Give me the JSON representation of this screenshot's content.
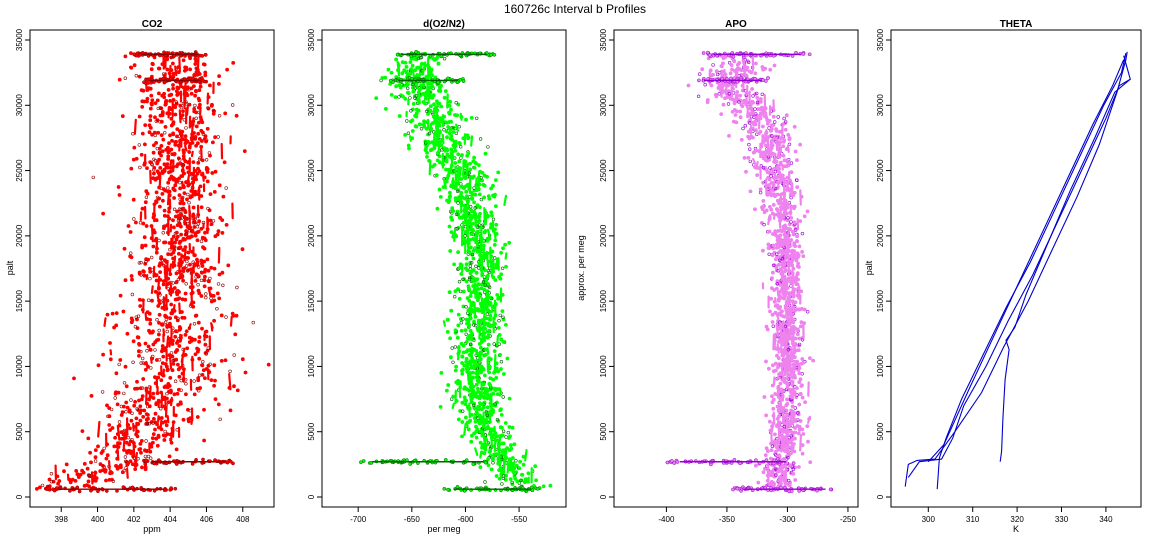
{
  "page_title": "160726c   Interval b Profiles",
  "chart_data": [
    {
      "type": "scatter",
      "title": "CO2",
      "xlabel": "ppm",
      "ylabel": "palt",
      "xlim": [
        396.5,
        409.5
      ],
      "ylim": [
        0,
        35000
      ],
      "xticks": [
        398,
        400,
        402,
        404,
        406,
        408
      ],
      "yticks": [
        0,
        5000,
        10000,
        15000,
        20000,
        25000,
        30000,
        35000
      ],
      "color": "#ff0000",
      "edge_color": "#8b0000",
      "profile": [
        [
          397.2,
          600
        ],
        [
          399.5,
          1400
        ],
        [
          401.5,
          2700
        ],
        [
          403.0,
          5800
        ],
        [
          404.0,
          10000
        ],
        [
          404.3,
          15000
        ],
        [
          404.5,
          20000
        ],
        [
          404.4,
          25000
        ],
        [
          404.6,
          30000
        ],
        [
          404.3,
          32000
        ],
        [
          404.1,
          34000
        ]
      ],
      "spread": [
        [
          0,
          4.0
        ],
        [
          2000,
          2.0
        ],
        [
          5000,
          3.0
        ],
        [
          10000,
          3.5
        ],
        [
          15000,
          3.0
        ],
        [
          20000,
          2.3
        ],
        [
          25000,
          2.3
        ],
        [
          30000,
          2.5
        ],
        [
          34000,
          2.5
        ]
      ],
      "horizontal_bands": [
        {
          "y": 600,
          "x_from": 397.0,
          "x_to": 404.5
        },
        {
          "y": 2700,
          "x_from": 402.5,
          "x_to": 407.5
        },
        {
          "y": 31900,
          "x_from": 402.5,
          "x_to": 406.0
        },
        {
          "y": 33900,
          "x_from": 402.0,
          "x_to": 406.0
        }
      ]
    },
    {
      "type": "scatter",
      "title": "d(O2/N2)",
      "xlabel": "per meg",
      "ylabel": "",
      "xlim": [
        -730,
        -510
      ],
      "ylim": [
        0,
        35000
      ],
      "xticks": [
        -700,
        -650,
        -600,
        -550
      ],
      "yticks": [
        0,
        5000,
        10000,
        15000,
        20000,
        25000,
        30000,
        35000
      ],
      "color": "#00ff00",
      "edge_color": "#006400",
      "profile": [
        [
          -545,
          600
        ],
        [
          -565,
          2700
        ],
        [
          -585,
          5800
        ],
        [
          -590,
          10000
        ],
        [
          -585,
          15000
        ],
        [
          -590,
          20000
        ],
        [
          -600,
          24000
        ],
        [
          -620,
          27000
        ],
        [
          -628,
          29000
        ],
        [
          -640,
          30500
        ],
        [
          -650,
          31900
        ],
        [
          -640,
          33900
        ]
      ],
      "spread": [
        [
          0,
          18
        ],
        [
          5000,
          20
        ],
        [
          10000,
          24
        ],
        [
          15000,
          22
        ],
        [
          20000,
          22
        ],
        [
          25000,
          26
        ],
        [
          30000,
          28
        ],
        [
          34000,
          25
        ]
      ],
      "horizontal_bands": [
        {
          "y": 600,
          "x_from": -620,
          "x_to": -530
        },
        {
          "y": 2700,
          "x_from": -700,
          "x_to": -570
        },
        {
          "y": 31900,
          "x_from": -670,
          "x_to": -600
        },
        {
          "y": 33900,
          "x_from": -670,
          "x_to": -570
        }
      ]
    },
    {
      "type": "scatter",
      "title": "APO",
      "xlabel": "",
      "ylabel": "approx. per meg",
      "xlim": [
        -440,
        -245
      ],
      "ylim": [
        0,
        35000
      ],
      "xticks": [
        -400,
        -350,
        -300,
        -250
      ],
      "yticks": [
        0,
        5000,
        10000,
        15000,
        20000,
        25000,
        30000,
        35000
      ],
      "color": "#ee82ee",
      "edge_color": "#9400d3",
      "profile": [
        [
          -310,
          600
        ],
        [
          -305,
          2700
        ],
        [
          -300,
          5800
        ],
        [
          -300,
          10000
        ],
        [
          -300,
          15000
        ],
        [
          -302,
          20000
        ],
        [
          -308,
          24000
        ],
        [
          -316,
          27000
        ],
        [
          -322,
          29000
        ],
        [
          -340,
          30500
        ],
        [
          -350,
          31900
        ],
        [
          -332,
          33900
        ]
      ],
      "spread": [
        [
          0,
          15
        ],
        [
          5000,
          14
        ],
        [
          10000,
          14
        ],
        [
          15000,
          12
        ],
        [
          20000,
          14
        ],
        [
          25000,
          18
        ],
        [
          30000,
          24
        ],
        [
          34000,
          22
        ]
      ],
      "horizontal_bands": [
        {
          "y": 600,
          "x_from": -345,
          "x_to": -260
        },
        {
          "y": 2700,
          "x_from": -400,
          "x_to": -290
        },
        {
          "y": 31900,
          "x_from": -375,
          "x_to": -315
        },
        {
          "y": 33900,
          "x_from": -370,
          "x_to": -280
        }
      ]
    },
    {
      "type": "line",
      "title": "THETA",
      "xlabel": "K",
      "ylabel": "palt",
      "xlim": [
        292.5,
        347
      ],
      "ylim": [
        0,
        35000
      ],
      "xticks": [
        300,
        310,
        320,
        330,
        340
      ],
      "yticks": [
        0,
        5000,
        10000,
        15000,
        20000,
        25000,
        30000,
        35000
      ],
      "color": "#0000cd",
      "series": [
        {
          "x": [
            294.8,
            295.5,
            297.5,
            301.5,
            306.0,
            312.0,
            317.0,
            322.5,
            328.0,
            333.5,
            338.5,
            342.5,
            344.5,
            344.8
          ],
          "y": [
            800,
            2500,
            2800,
            2900,
            5000,
            8000,
            11500,
            15000,
            19000,
            23000,
            27000,
            31000,
            33500,
            34100
          ]
        },
        {
          "x": [
            295.5,
            298.0,
            303.0,
            305.5,
            308.0,
            313.0,
            318.0,
            323.5,
            329.0,
            334.5,
            340.0,
            343.0,
            345.5,
            344.0
          ],
          "y": [
            1500,
            2700,
            2900,
            4500,
            7000,
            10000,
            13500,
            17000,
            21000,
            25000,
            29000,
            31500,
            32000,
            33800
          ]
        },
        {
          "x": [
            302.0,
            302.5,
            304.0,
            307.5,
            312.5,
            317.5,
            323.0,
            328.5,
            334.0,
            339.5,
            343.5,
            344.5
          ],
          "y": [
            600,
            3000,
            4500,
            7500,
            11000,
            14500,
            18000,
            22000,
            26000,
            30000,
            32500,
            34000
          ]
        },
        {
          "x": [
            300.0,
            303.5,
            309.5,
            315.0,
            320.5,
            326.0,
            331.5,
            337.0,
            341.5,
            344.0
          ],
          "y": [
            2700,
            4000,
            8500,
            12500,
            16500,
            20500,
            24500,
            28500,
            31500,
            33500
          ]
        },
        {
          "x": [
            316.2,
            316.5,
            316.8,
            317.3,
            318.2,
            317.5,
            319.5,
            322.0,
            327.0,
            332.0,
            337.5,
            342.0,
            345.5
          ],
          "y": [
            2700,
            3500,
            6000,
            9000,
            11300,
            12000,
            13000,
            15500,
            19500,
            23500,
            27500,
            31000,
            32000
          ]
        }
      ]
    }
  ]
}
